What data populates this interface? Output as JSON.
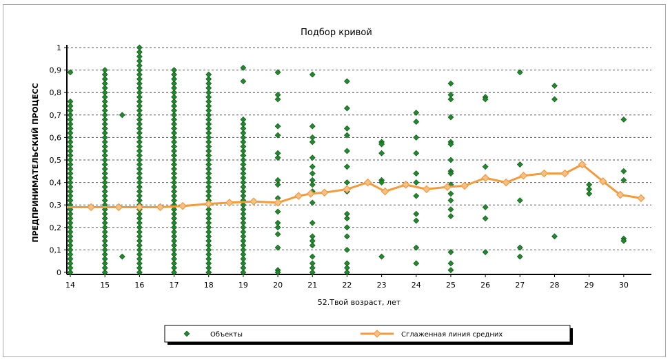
{
  "chart_data": {
    "type": "scatter",
    "title": "Подбор кривой",
    "xlabel": "52.Твой возраст, лет",
    "ylabel": "ПРЕДПРИНИМАТЕЛЬСКИЙ ПРОЦЕСС",
    "xlim": [
      13.9,
      30.8
    ],
    "ylim": [
      0,
      1
    ],
    "grid": "horizontal-dashed",
    "legend_position": "bottom",
    "x_ticks": [
      "14",
      "15",
      "16",
      "17",
      "18",
      "19",
      "20",
      "21",
      "22",
      "23",
      "24",
      "25",
      "26",
      "27",
      "28",
      "29",
      "30"
    ],
    "y_ticks": [
      "0",
      "0,1",
      "0,2",
      "0,3",
      "0,4",
      "0,5",
      "0,6",
      "0,7",
      "0,8",
      "0,9",
      "1"
    ],
    "y_tick_values": [
      0,
      0.1,
      0.2,
      0.3,
      0.4,
      0.5,
      0.6,
      0.7,
      0.8,
      0.9,
      1
    ],
    "series": [
      {
        "name": "Объекты",
        "color": "#1f8a2c",
        "columns": [
          {
            "x": 14,
            "min": 0,
            "max": 0.76,
            "extra": [
              0.89
            ]
          },
          {
            "x": 15,
            "min": 0,
            "max": 0.9,
            "extra": []
          },
          {
            "x": 15.5,
            "min": null,
            "max": null,
            "extra": [
              0.7,
              0.07
            ]
          },
          {
            "x": 16,
            "min": 0,
            "max": 1.0,
            "extra": []
          },
          {
            "x": 17,
            "min": 0,
            "max": 0.9,
            "extra": []
          },
          {
            "x": 18,
            "min": 0,
            "max": 0.88,
            "extra": []
          },
          {
            "x": 19,
            "min": 0,
            "max": 0.68,
            "extra": [
              0.91,
              0.85
            ]
          },
          {
            "x": 20,
            "min": null,
            "max": null,
            "extra": [
              0.89,
              0.79,
              0.77,
              0.65,
              0.61,
              0.53,
              0.51,
              0.41,
              0.39,
              0.33,
              0.31,
              0.27,
              0.22,
              0.2,
              0.17,
              0.11,
              0.01,
              0.0
            ]
          },
          {
            "x": 21,
            "min": null,
            "max": null,
            "extra": [
              0.88,
              0.65,
              0.6,
              0.58,
              0.51,
              0.47,
              0.44,
              0.41,
              0.39,
              0.36,
              0.31,
              0.22,
              0.16,
              0.14,
              0.12,
              0.07,
              0.04,
              0.02,
              0.0
            ]
          },
          {
            "x": 22,
            "min": null,
            "max": null,
            "extra": [
              0.85,
              0.73,
              0.64,
              0.61,
              0.54,
              0.47,
              0.4,
              0.36,
              0.26,
              0.24,
              0.2,
              0.16,
              0.1,
              0.04,
              0.02,
              0.0
            ]
          },
          {
            "x": 23,
            "min": null,
            "max": null,
            "extra": [
              0.58,
              0.57,
              0.53,
              0.41,
              0.4,
              0.07
            ]
          },
          {
            "x": 24,
            "min": null,
            "max": null,
            "extra": [
              0.71,
              0.67,
              0.6,
              0.53,
              0.44,
              0.4,
              0.34,
              0.26,
              0.23,
              0.11,
              0.04
            ]
          },
          {
            "x": 25,
            "min": null,
            "max": null,
            "extra": [
              0.84,
              0.79,
              0.77,
              0.69,
              0.58,
              0.57,
              0.5,
              0.45,
              0.44,
              0.39,
              0.35,
              0.32,
              0.28,
              0.25,
              0.09,
              0.04,
              0.01
            ]
          },
          {
            "x": 26,
            "min": null,
            "max": null,
            "extra": [
              0.78,
              0.77,
              0.47,
              0.42,
              0.29,
              0.24,
              0.09
            ]
          },
          {
            "x": 27,
            "min": null,
            "max": null,
            "extra": [
              0.89,
              0.48,
              0.32,
              0.11,
              0.07
            ]
          },
          {
            "x": 28,
            "min": null,
            "max": null,
            "extra": [
              0.83,
              0.77,
              0.16
            ]
          },
          {
            "x": 29,
            "min": null,
            "max": null,
            "extra": [
              0.39,
              0.37,
              0.35
            ]
          },
          {
            "x": 30,
            "min": null,
            "max": null,
            "extra": [
              0.68,
              0.45,
              0.41,
              0.15,
              0.14
            ]
          }
        ]
      },
      {
        "name": "Сглаженная линия средних",
        "color": "#f39a3a",
        "marker_fill": "#f6c08a",
        "x": [
          13.9,
          14.6,
          15.4,
          16,
          16.6,
          17.25,
          18,
          18.6,
          19.3,
          20,
          20.6,
          20.95,
          21.35,
          22,
          22.6,
          23.1,
          23.7,
          24.3,
          24.9,
          25.4,
          26,
          26.6,
          27.1,
          27.7,
          28.3,
          28.8,
          29.4,
          29.9,
          30.5
        ],
        "y": [
          0.29,
          0.29,
          0.29,
          0.29,
          0.29,
          0.295,
          0.305,
          0.31,
          0.315,
          0.31,
          0.34,
          0.35,
          0.355,
          0.37,
          0.4,
          0.36,
          0.39,
          0.37,
          0.38,
          0.385,
          0.42,
          0.4,
          0.43,
          0.44,
          0.44,
          0.48,
          0.405,
          0.345,
          0.33
        ]
      }
    ]
  }
}
